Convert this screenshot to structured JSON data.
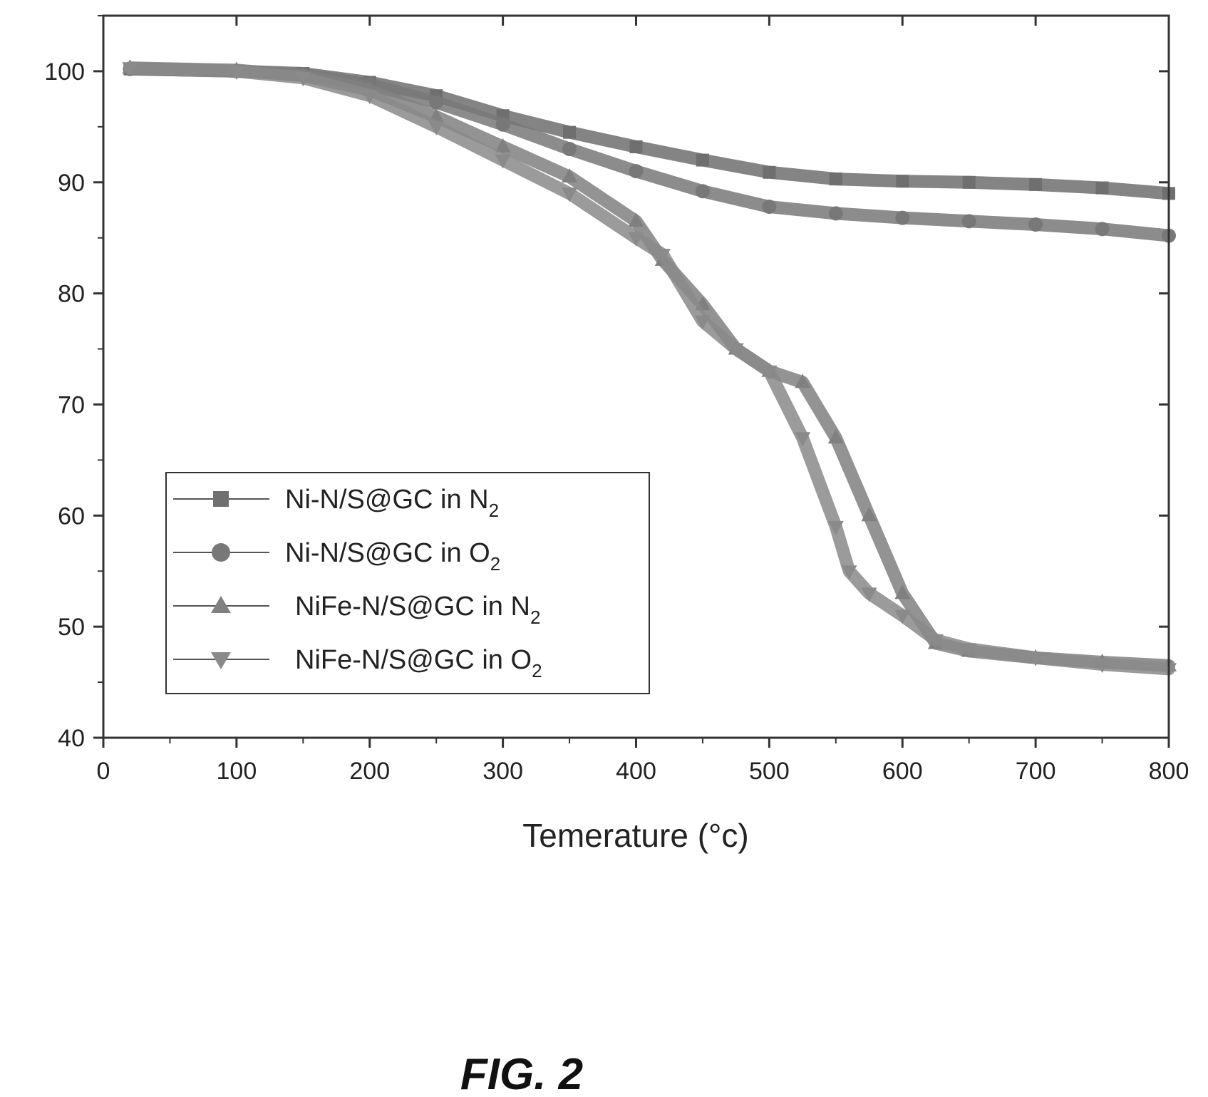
{
  "chart_data": {
    "type": "line",
    "xlabel": "Temerature (°c)",
    "ylabel": "",
    "xlim": [
      0,
      800
    ],
    "ylim": [
      40,
      105
    ],
    "x_ticks": [
      0,
      100,
      200,
      300,
      400,
      500,
      600,
      700,
      800
    ],
    "y_ticks": [
      40,
      50,
      60,
      70,
      80,
      90,
      100
    ],
    "grid": false,
    "legend_position": "lower-left",
    "series": [
      {
        "name": "Ni-N/S@GC in N",
        "subscript": "2",
        "marker": "square",
        "color": "#6f6f6f",
        "x": [
          20,
          100,
          150,
          200,
          250,
          300,
          350,
          400,
          450,
          500,
          550,
          600,
          650,
          700,
          750,
          800
        ],
        "y": [
          100.2,
          100.0,
          99.8,
          99.0,
          97.8,
          96.0,
          94.5,
          93.2,
          92.0,
          90.9,
          90.3,
          90.1,
          90.0,
          89.8,
          89.5,
          89.0
        ]
      },
      {
        "name": "Ni-N/S@GC in O",
        "subscript": "2",
        "marker": "circle",
        "color": "#787878",
        "x": [
          20,
          100,
          150,
          200,
          250,
          300,
          350,
          400,
          450,
          500,
          550,
          600,
          650,
          700,
          750,
          800
        ],
        "y": [
          100.2,
          100.0,
          99.7,
          98.8,
          97.2,
          95.2,
          93.0,
          91.0,
          89.2,
          87.8,
          87.2,
          86.8,
          86.5,
          86.2,
          85.8,
          85.2
        ]
      },
      {
        "name": "NiFe-N/S@GC in N",
        "subscript": "2",
        "marker": "triangle-up",
        "color": "#808080",
        "x": [
          20,
          100,
          150,
          200,
          250,
          300,
          350,
          400,
          420,
          450,
          475,
          500,
          525,
          550,
          575,
          600,
          625,
          650,
          700,
          750,
          800
        ],
        "y": [
          100.3,
          100.1,
          99.6,
          98.3,
          95.9,
          93.2,
          90.5,
          86.5,
          83.0,
          79.0,
          75.0,
          73.0,
          72.0,
          67.0,
          60.0,
          53.0,
          48.5,
          47.8,
          47.2,
          46.8,
          46.5
        ]
      },
      {
        "name": "NiFe-N/S@GC in O",
        "subscript": "2",
        "marker": "triangle-down",
        "color": "#8a8a8a",
        "x": [
          20,
          100,
          150,
          200,
          250,
          300,
          350,
          400,
          420,
          450,
          475,
          500,
          525,
          550,
          560,
          575,
          600,
          625,
          650,
          700,
          750,
          800
        ],
        "y": [
          100.3,
          100.0,
          99.4,
          97.8,
          95.0,
          92.0,
          89.0,
          85.0,
          83.5,
          77.5,
          75.0,
          73.0,
          67.0,
          59.0,
          55.0,
          53.0,
          51.0,
          48.8,
          48.0,
          47.2,
          46.6,
          46.2
        ]
      }
    ]
  },
  "caption": "FIG. 2"
}
